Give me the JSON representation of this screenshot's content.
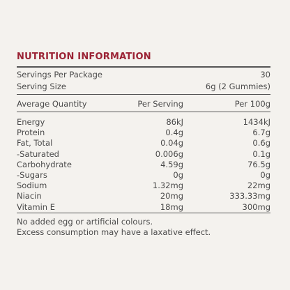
{
  "title": "NUTRITION INFORMATION",
  "servings": [
    [
      "Servings Per Package",
      "30"
    ],
    [
      "Serving Size",
      "6g (2 Gummies)"
    ]
  ],
  "table": {
    "header": [
      "Average Quantity",
      "Per Serving",
      "Per 100g"
    ],
    "rows": [
      [
        "Energy",
        "86kJ",
        "1434kJ"
      ],
      [
        "Protein",
        "0.4g",
        "6.7g"
      ],
      [
        "Fat, Total",
        "0.04g",
        "0.6g"
      ],
      [
        "-Saturated",
        "0.006g",
        "0.1g"
      ],
      [
        "Carbohydrate",
        "4.59g",
        "76.5g"
      ],
      [
        "-Sugars",
        "0g",
        "0g"
      ],
      [
        "Sodium",
        "1.32mg",
        "22mg"
      ],
      [
        "Niacin",
        "20mg",
        "333.33mg"
      ],
      [
        "Vitamin E",
        "18mg",
        "300mg"
      ]
    ]
  },
  "notes": [
    "No added egg or artificial colours.",
    "Excess consumption may have a laxative effect."
  ]
}
